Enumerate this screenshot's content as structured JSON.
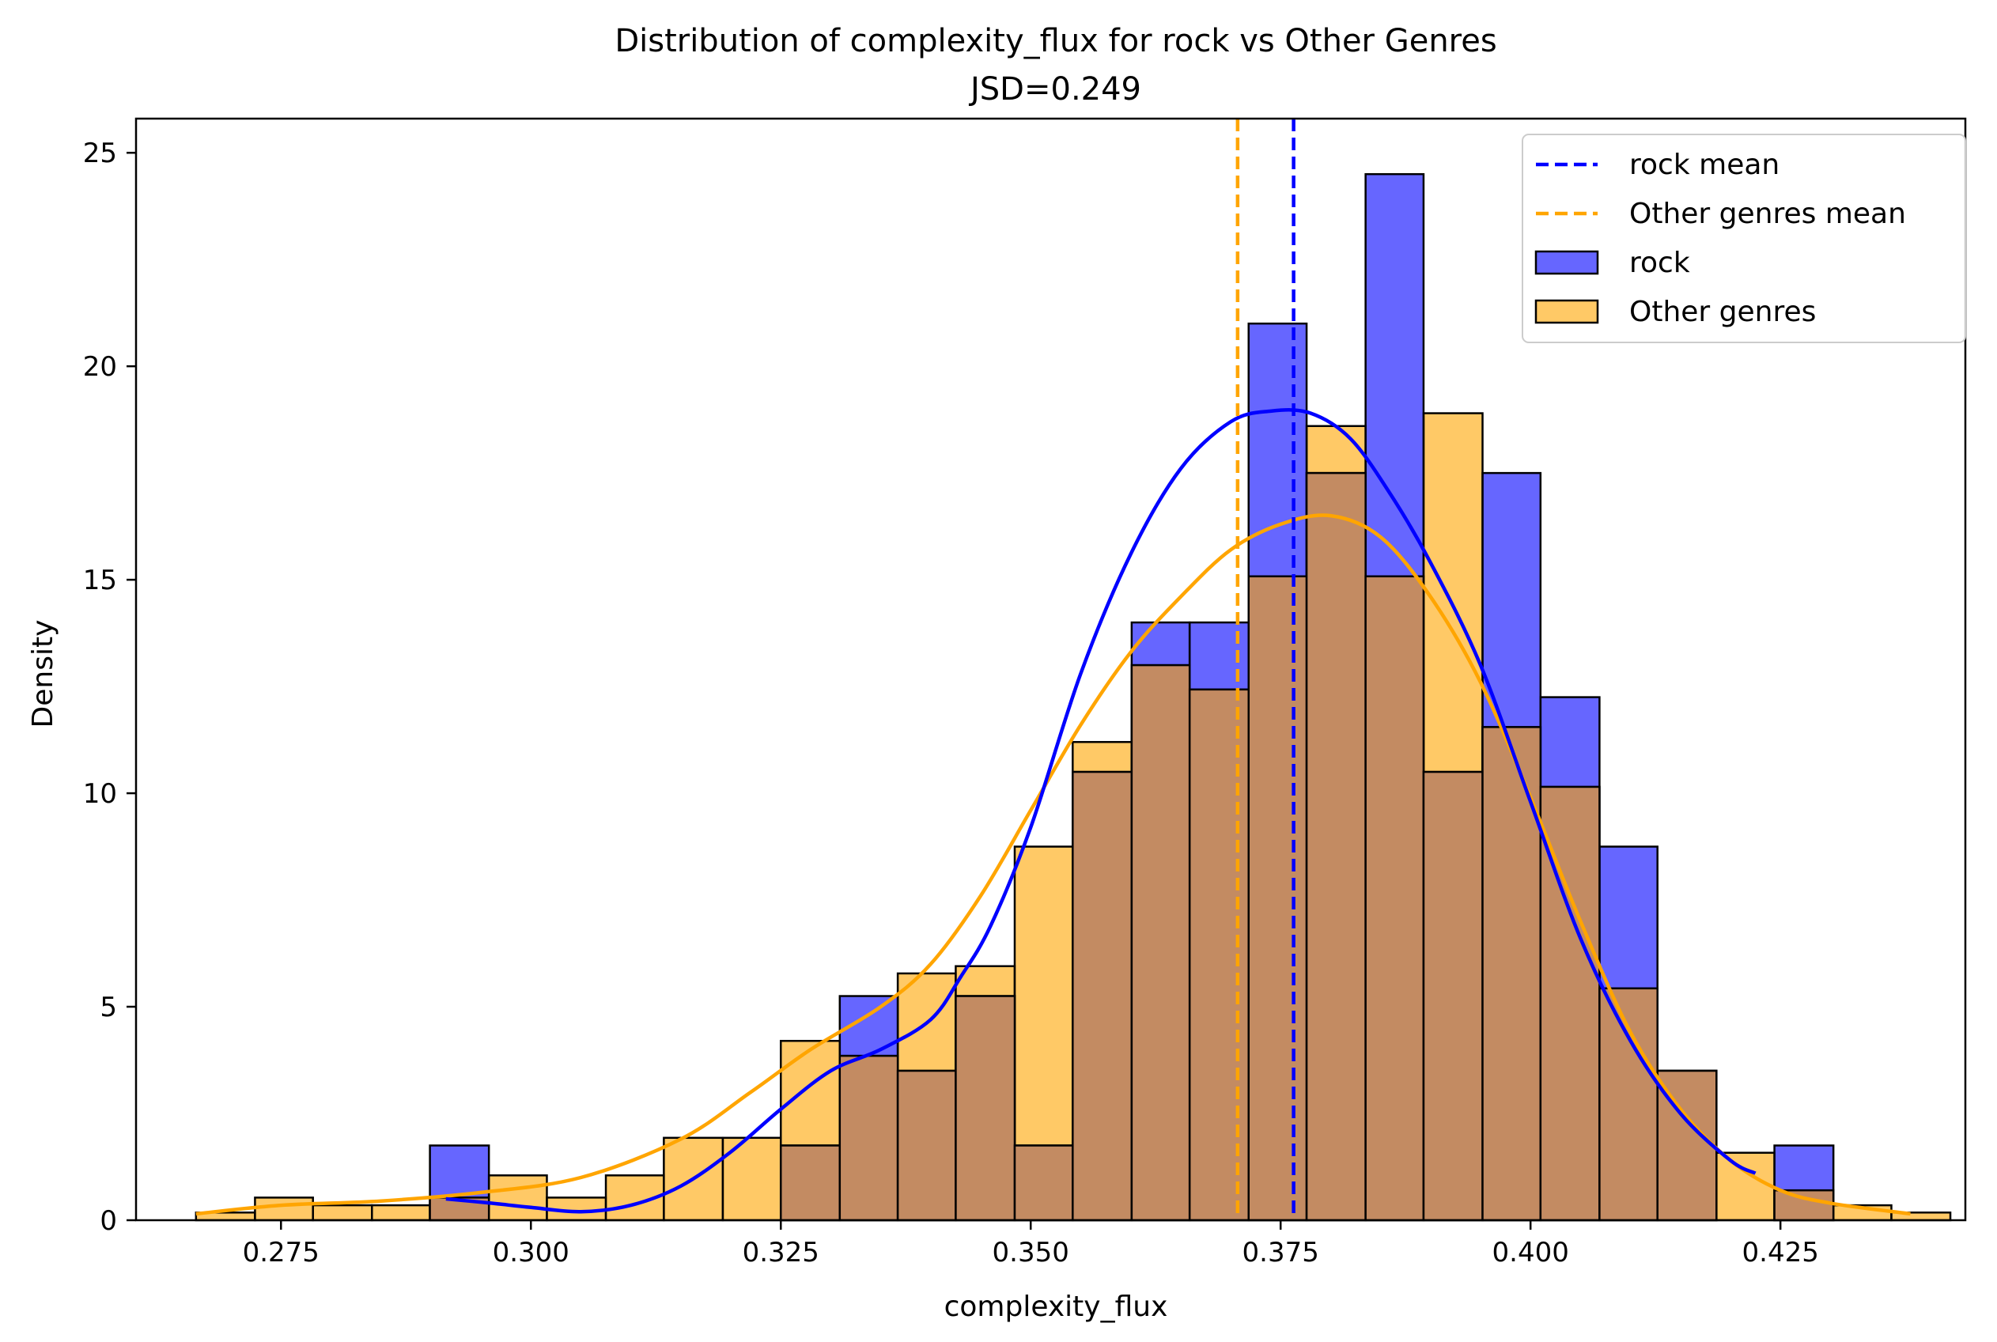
{
  "chart_data": {
    "type": "bar",
    "title": "Distribution of complexity_flux for rock vs Other Genres",
    "subtitle": "JSD=0.249",
    "xlabel": "complexity_flux",
    "ylabel": "Density",
    "xlim": [
      0.2605,
      0.4435
    ],
    "ylim": [
      0,
      25.8
    ],
    "x_ticks": [
      0.275,
      0.3,
      0.325,
      0.35,
      0.375,
      0.4,
      0.425
    ],
    "x_tick_labels": [
      "0.275",
      "0.300",
      "0.325",
      "0.350",
      "0.375",
      "0.400",
      "0.425"
    ],
    "y_ticks": [
      0,
      5,
      10,
      15,
      20,
      25
    ],
    "y_tick_labels": [
      "0",
      "5",
      "10",
      "15",
      "20",
      "25"
    ],
    "grid": false,
    "legend_position": "upper right",
    "colors": {
      "rock": "#0000ff",
      "other": "#ffa500",
      "overlap": "#c38b62"
    },
    "rock_hist": {
      "name": "rock",
      "bins": [
        {
          "x0": 0.2899,
          "x1": 0.2958,
          "density": 1.75
        },
        {
          "x0": 0.2958,
          "x1": 0.3016,
          "density": 0.0
        },
        {
          "x0": 0.3016,
          "x1": 0.3075,
          "density": 0.0
        },
        {
          "x0": 0.3075,
          "x1": 0.3133,
          "density": 0.0
        },
        {
          "x0": 0.3133,
          "x1": 0.3192,
          "density": 0.0
        },
        {
          "x0": 0.3192,
          "x1": 0.325,
          "density": 0.0
        },
        {
          "x0": 0.325,
          "x1": 0.3309,
          "density": 1.75
        },
        {
          "x0": 0.3309,
          "x1": 0.3367,
          "density": 5.25
        },
        {
          "x0": 0.3367,
          "x1": 0.3425,
          "density": 3.5
        },
        {
          "x0": 0.3425,
          "x1": 0.3484,
          "density": 5.25
        },
        {
          "x0": 0.3484,
          "x1": 0.3542,
          "density": 1.75
        },
        {
          "x0": 0.3542,
          "x1": 0.3601,
          "density": 10.5
        },
        {
          "x0": 0.3601,
          "x1": 0.3659,
          "density": 14.0
        },
        {
          "x0": 0.3659,
          "x1": 0.3718,
          "density": 14.0
        },
        {
          "x0": 0.3718,
          "x1": 0.3776,
          "density": 21.0
        },
        {
          "x0": 0.3776,
          "x1": 0.3835,
          "density": 17.5
        },
        {
          "x0": 0.3835,
          "x1": 0.3893,
          "density": 24.5
        },
        {
          "x0": 0.3893,
          "x1": 0.3952,
          "density": 10.5
        },
        {
          "x0": 0.3952,
          "x1": 0.401,
          "density": 17.5
        },
        {
          "x0": 0.401,
          "x1": 0.4069,
          "density": 12.25
        },
        {
          "x0": 0.4069,
          "x1": 0.4127,
          "density": 8.75
        },
        {
          "x0": 0.4127,
          "x1": 0.4186,
          "density": 3.5
        },
        {
          "x0": 0.4186,
          "x1": 0.4244,
          "density": 0.0
        },
        {
          "x0": 0.4244,
          "x1": 0.4303,
          "density": 1.75
        }
      ]
    },
    "other_hist": {
      "name": "Other genres",
      "bins": [
        {
          "x0": 0.2665,
          "x1": 0.2724,
          "density": 0.18
        },
        {
          "x0": 0.2724,
          "x1": 0.2782,
          "density": 0.53
        },
        {
          "x0": 0.2782,
          "x1": 0.2841,
          "density": 0.35
        },
        {
          "x0": 0.2841,
          "x1": 0.2899,
          "density": 0.35
        },
        {
          "x0": 0.2899,
          "x1": 0.2958,
          "density": 0.53
        },
        {
          "x0": 0.2958,
          "x1": 0.3016,
          "density": 1.05
        },
        {
          "x0": 0.3016,
          "x1": 0.3075,
          "density": 0.53
        },
        {
          "x0": 0.3075,
          "x1": 0.3133,
          "density": 1.05
        },
        {
          "x0": 0.3133,
          "x1": 0.3192,
          "density": 1.93
        },
        {
          "x0": 0.3192,
          "x1": 0.325,
          "density": 1.93
        },
        {
          "x0": 0.325,
          "x1": 0.3309,
          "density": 4.2
        },
        {
          "x0": 0.3309,
          "x1": 0.3367,
          "density": 3.85
        },
        {
          "x0": 0.3367,
          "x1": 0.3425,
          "density": 5.78
        },
        {
          "x0": 0.3425,
          "x1": 0.3484,
          "density": 5.95
        },
        {
          "x0": 0.3484,
          "x1": 0.3542,
          "density": 8.75
        },
        {
          "x0": 0.3542,
          "x1": 0.3601,
          "density": 11.2
        },
        {
          "x0": 0.3601,
          "x1": 0.3659,
          "density": 13.0
        },
        {
          "x0": 0.3659,
          "x1": 0.3718,
          "density": 12.43
        },
        {
          "x0": 0.3718,
          "x1": 0.3776,
          "density": 15.08
        },
        {
          "x0": 0.3776,
          "x1": 0.3835,
          "density": 18.6
        },
        {
          "x0": 0.3835,
          "x1": 0.3893,
          "density": 15.08
        },
        {
          "x0": 0.3893,
          "x1": 0.3952,
          "density": 18.9
        },
        {
          "x0": 0.3952,
          "x1": 0.401,
          "density": 11.55
        },
        {
          "x0": 0.401,
          "x1": 0.4069,
          "density": 10.15
        },
        {
          "x0": 0.4069,
          "x1": 0.4127,
          "density": 5.43
        },
        {
          "x0": 0.4127,
          "x1": 0.4186,
          "density": 3.5
        },
        {
          "x0": 0.4186,
          "x1": 0.4244,
          "density": 1.58
        },
        {
          "x0": 0.4244,
          "x1": 0.4303,
          "density": 0.7
        },
        {
          "x0": 0.4303,
          "x1": 0.4361,
          "density": 0.35
        },
        {
          "x0": 0.4361,
          "x1": 0.442,
          "density": 0.18
        }
      ]
    },
    "kde": {
      "rock": {
        "x": [
          0.2915,
          0.296,
          0.3,
          0.305,
          0.31,
          0.315,
          0.32,
          0.325,
          0.33,
          0.335,
          0.34,
          0.343,
          0.346,
          0.35,
          0.355,
          0.36,
          0.365,
          0.37,
          0.374,
          0.378,
          0.382,
          0.386,
          0.39,
          0.395,
          0.4,
          0.405,
          0.41,
          0.415,
          0.42,
          0.4225
        ],
        "y": [
          0.5,
          0.4,
          0.3,
          0.2,
          0.35,
          0.8,
          1.6,
          2.6,
          3.5,
          4.0,
          4.7,
          5.7,
          6.9,
          9.2,
          12.8,
          15.6,
          17.6,
          18.7,
          18.95,
          18.9,
          18.3,
          17.0,
          15.4,
          13.0,
          9.8,
          6.6,
          4.2,
          2.5,
          1.4,
          1.1
        ]
      },
      "other": {
        "x": [
          0.2665,
          0.275,
          0.285,
          0.295,
          0.305,
          0.315,
          0.322,
          0.328,
          0.335,
          0.34,
          0.345,
          0.35,
          0.355,
          0.36,
          0.365,
          0.37,
          0.375,
          0.38,
          0.385,
          0.39,
          0.395,
          0.4,
          0.405,
          0.41,
          0.415,
          0.42,
          0.425,
          0.43,
          0.438
        ],
        "y": [
          0.15,
          0.35,
          0.45,
          0.65,
          1.0,
          1.9,
          3.0,
          4.0,
          5.0,
          6.0,
          7.6,
          9.6,
          11.6,
          13.3,
          14.6,
          15.7,
          16.3,
          16.5,
          16.0,
          14.6,
          12.6,
          9.9,
          7.0,
          4.4,
          2.6,
          1.4,
          0.7,
          0.4,
          0.15
        ]
      }
    },
    "means": {
      "rock": 0.3763,
      "other": 0.3707
    },
    "legend": {
      "items": [
        {
          "label": "rock mean",
          "kind": "dashed-line",
          "color_key": "rock"
        },
        {
          "label": "Other genres mean",
          "kind": "dashed-line",
          "color_key": "other"
        },
        {
          "label": "rock",
          "kind": "patch",
          "color_key": "rock"
        },
        {
          "label": "Other genres",
          "kind": "patch",
          "color_key": "other"
        }
      ]
    }
  }
}
